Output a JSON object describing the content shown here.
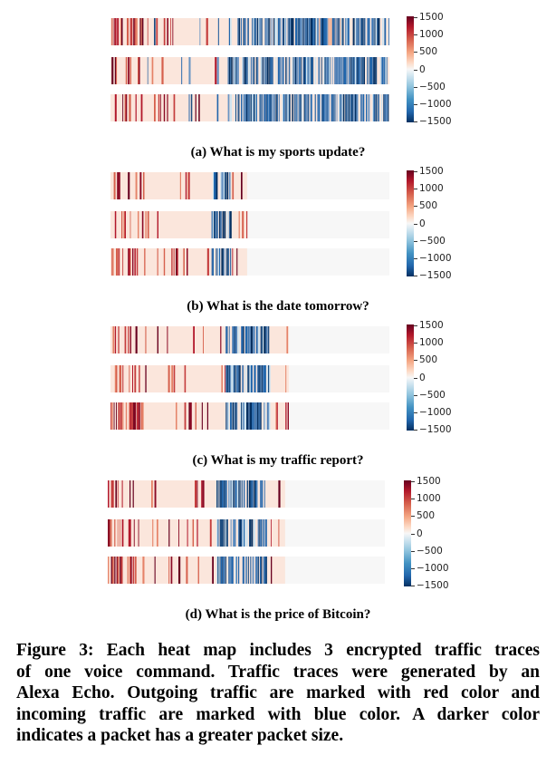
{
  "colorbar": {
    "ticks": [
      "1500",
      "1000",
      "500",
      "0",
      "−500",
      "−1000",
      "−1500"
    ],
    "values": [
      1500,
      1000,
      500,
      0,
      -500,
      -1000,
      -1500
    ],
    "high_color": "#67001f",
    "low_color": "#053061",
    "mid_color": "#f7f7f7"
  },
  "panels": [
    {
      "caption": "(a) What is my sports update?"
    },
    {
      "caption": "(b) What is the date tomorrow?"
    },
    {
      "caption": "(c) What is my traffic report?"
    },
    {
      "caption": "(d) What is the price of Bitcoin?"
    }
  ],
  "figure_caption": {
    "lines": [
      "Figure 3: Each heat map includes 3 encrypted traffic traces",
      "of one voice command. Traffic traces were generated by an",
      "Alexa Echo. Outgoing traffic are marked with red color and",
      "incoming traffic are marked with blue color. A darker color",
      "indicates a packet has a greater packet size."
    ]
  }
}
